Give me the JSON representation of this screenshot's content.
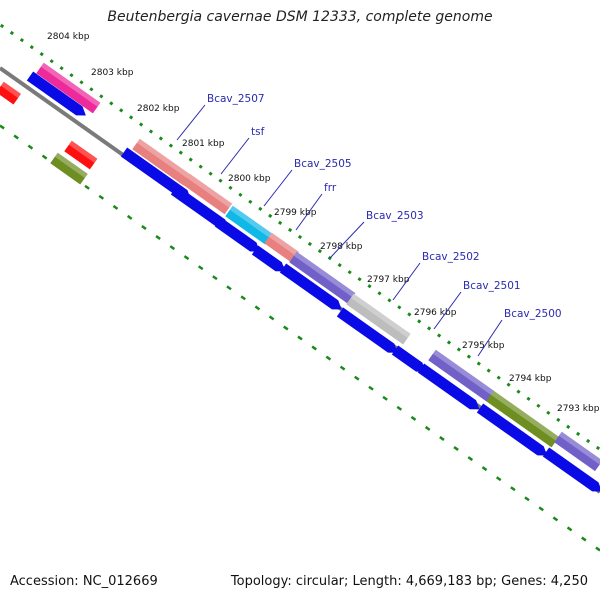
{
  "title": "Beutenbergia cavernae DSM 12333, complete genome",
  "footer": {
    "accession": "Accession: NC_012669",
    "topology": "Topology: circular; Length: 4,669,183 bp; Genes: 4,250"
  },
  "colors": {
    "cds": "#0a0ae6",
    "backbone": "#7a7a7a",
    "ruler_dots": "#1a8a1a"
  },
  "kbp_labels": [
    "2804 kbp",
    "2803 kbp",
    "2802 kbp",
    "2801 kbp",
    "2800 kbp",
    "2799 kbp",
    "2798 kbp",
    "2797 kbp",
    "2796 kbp",
    "2795 kbp",
    "2794 kbp",
    "2793 kbp"
  ],
  "gene_labels": [
    "Bcav_2507",
    "tsf",
    "Bcav_2505",
    "frr",
    "Bcav_2503",
    "Bcav_2502",
    "Bcav_2501",
    "Bcav_2500"
  ],
  "features": [
    {
      "name": "red-feature-a",
      "color": "#ff1010"
    },
    {
      "name": "magenta-feature",
      "color": "#ee2a9a"
    },
    {
      "name": "red-feature-b",
      "color": "#ff1010"
    },
    {
      "name": "olive-feature-a",
      "color": "#6e8e22"
    },
    {
      "name": "Bcav_2507",
      "color": "#e88080"
    },
    {
      "name": "tsf",
      "color": "#e88080"
    },
    {
      "name": "Bcav_2505",
      "color": "#10b8e8"
    },
    {
      "name": "frr",
      "color": "#e88080"
    },
    {
      "name": "Bcav_2503",
      "color": "#7060c8"
    },
    {
      "name": "Bcav_2502",
      "color": "#bdbdbd"
    },
    {
      "name": "Bcav_2501",
      "color": "#7060c8"
    },
    {
      "name": "Bcav_2500",
      "color": "#6e8e22"
    },
    {
      "name": "purple-feature-end",
      "color": "#7060c8"
    }
  ]
}
